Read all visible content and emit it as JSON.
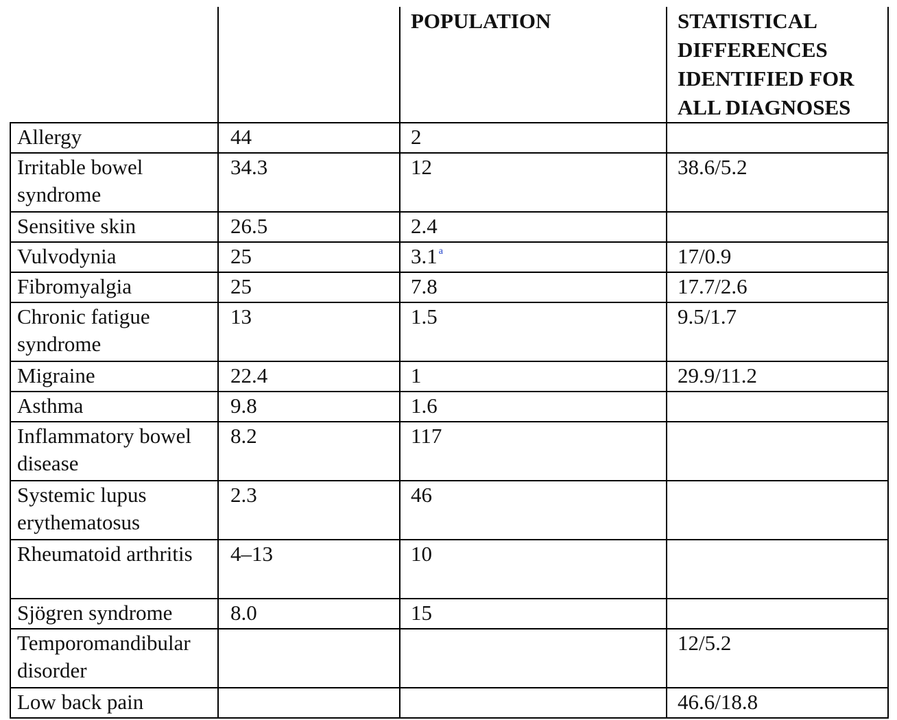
{
  "table": {
    "headers": [
      "",
      "",
      "POPULATION",
      "STATISTICAL DIFFERENCES IDENTIFIED FOR ALL DIAGNOSES"
    ],
    "rows": [
      {
        "diagnosis": "Allergy",
        "col1": "44",
        "col2": "2",
        "col2_note": "",
        "col3": ""
      },
      {
        "diagnosis": "Irritable bowel syndrome",
        "col1": "34.3",
        "col2": "12",
        "col2_note": "",
        "col3": "38.6/5.2"
      },
      {
        "diagnosis": "Sensitive skin",
        "col1": "26.5",
        "col2": "2.4",
        "col2_note": "",
        "col3": ""
      },
      {
        "diagnosis": "Vulvodynia",
        "col1": "25",
        "col2": "3.1",
        "col2_note": "a",
        "col3": "17/0.9"
      },
      {
        "diagnosis": "Fibromyalgia",
        "col1": "25",
        "col2": "7.8",
        "col2_note": "",
        "col3": "17.7/2.6"
      },
      {
        "diagnosis": "Chronic fatigue syndrome",
        "col1": "13",
        "col2": "1.5",
        "col2_note": "",
        "col3": "9.5/1.7"
      },
      {
        "diagnosis": "Migraine",
        "col1": "22.4",
        "col2": "1",
        "col2_note": "",
        "col3": "29.9/11.2"
      },
      {
        "diagnosis": "Asthma",
        "col1": "9.8",
        "col2": "1.6",
        "col2_note": "",
        "col3": ""
      },
      {
        "diagnosis": "Inflammatory bowel disease",
        "col1": "8.2",
        "col2": "117",
        "col2_note": "",
        "col3": ""
      },
      {
        "diagnosis": "Systemic lupus erythematosus",
        "col1": "2.3",
        "col2": "46",
        "col2_note": "",
        "col3": ""
      },
      {
        "diagnosis": "Rheumatoid arthritis",
        "col1": "4–13",
        "col2": "10",
        "col2_note": "",
        "col3": ""
      },
      {
        "diagnosis": "Sjögren syndrome",
        "col1": "8.0",
        "col2": "15",
        "col2_note": "",
        "col3": ""
      },
      {
        "diagnosis": "Temporomandibular disorder",
        "col1": "",
        "col2": "",
        "col2_note": "",
        "col3": "12/5.2"
      },
      {
        "diagnosis": "Low back pain",
        "col1": "",
        "col2": "",
        "col2_note": "",
        "col3": "46.6/18.8"
      }
    ]
  },
  "colors": {
    "border": "#000000",
    "text": "#111111",
    "footnote_link": "#1a3cc8"
  }
}
